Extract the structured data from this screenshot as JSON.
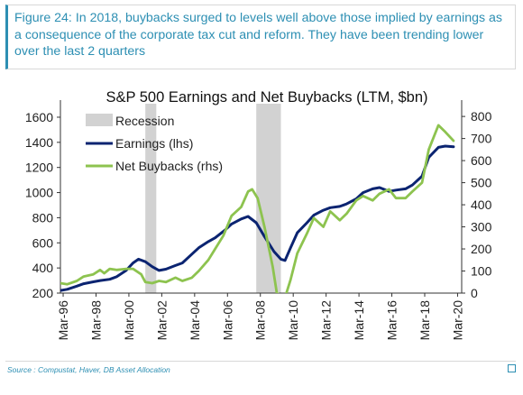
{
  "figure": {
    "caption": "Figure 24: In 2018, buybacks surged to levels well above those implied by earnings as a consequence of the corporate tax cut and reform. They have been trending lower over the last 2 quarters",
    "source": "Source : Compustat, Haver, DB Asset Allocation"
  },
  "colors": {
    "earnings": "#0b2471",
    "buybacks": "#8dc34f",
    "recession": "#d2d2d2",
    "caption": "#2d8fb3"
  },
  "chart_data": {
    "type": "line",
    "title": "S&P 500 Earnings and Net Buybacks (LTM, $bn)",
    "x_axis": {
      "type": "date",
      "range": [
        "1996-01",
        "2020-06"
      ],
      "tick_labels": [
        "Mar-96",
        "Mar-98",
        "Mar-00",
        "Mar-02",
        "Mar-04",
        "Mar-06",
        "Mar-08",
        "Mar-10",
        "Mar-12",
        "Mar-14",
        "Mar-16",
        "Mar-18",
        "Mar-20"
      ]
    },
    "y_left": {
      "range": [
        200,
        1650
      ],
      "ticks": [
        200,
        400,
        600,
        800,
        1000,
        1200,
        1400,
        1600
      ]
    },
    "y_right": {
      "range": [
        0,
        825
      ],
      "ticks": [
        0,
        100,
        200,
        300,
        400,
        500,
        600,
        700,
        800
      ]
    },
    "grid": false,
    "legend": {
      "position": "top-left",
      "entries": [
        {
          "label": "Recession",
          "kind": "band"
        },
        {
          "label": "Earnings (lhs)",
          "kind": "line",
          "series": "earnings"
        },
        {
          "label": "Net Buybacks (rhs)",
          "kind": "line",
          "series": "buybacks"
        }
      ]
    },
    "recessions": [
      {
        "start": "2001-03",
        "end": "2001-11"
      },
      {
        "start": "2007-12",
        "end": "2009-06"
      }
    ],
    "series": [
      {
        "key": "earnings",
        "axis": "left",
        "points": [
          [
            "1996-01",
            220
          ],
          [
            "1996-06",
            230
          ],
          [
            "1997-01",
            255
          ],
          [
            "1997-06",
            275
          ],
          [
            "1998-01",
            290
          ],
          [
            "1998-06",
            300
          ],
          [
            "1999-01",
            310
          ],
          [
            "1999-06",
            330
          ],
          [
            "2000-01",
            380
          ],
          [
            "2000-06",
            440
          ],
          [
            "2000-10",
            470
          ],
          [
            "2001-03",
            450
          ],
          [
            "2001-08",
            410
          ],
          [
            "2002-01",
            380
          ],
          [
            "2002-06",
            390
          ],
          [
            "2003-01",
            420
          ],
          [
            "2003-06",
            440
          ],
          [
            "2004-01",
            510
          ],
          [
            "2004-06",
            560
          ],
          [
            "2005-01",
            610
          ],
          [
            "2005-06",
            640
          ],
          [
            "2006-01",
            700
          ],
          [
            "2006-06",
            750
          ],
          [
            "2007-01",
            790
          ],
          [
            "2007-06",
            810
          ],
          [
            "2007-12",
            760
          ],
          [
            "2008-06",
            650
          ],
          [
            "2009-01",
            530
          ],
          [
            "2009-06",
            470
          ],
          [
            "2009-09",
            460
          ],
          [
            "2010-01",
            560
          ],
          [
            "2010-06",
            680
          ],
          [
            "2011-01",
            760
          ],
          [
            "2011-06",
            820
          ],
          [
            "2012-01",
            860
          ],
          [
            "2012-06",
            880
          ],
          [
            "2013-01",
            890
          ],
          [
            "2013-06",
            910
          ],
          [
            "2014-01",
            950
          ],
          [
            "2014-06",
            1000
          ],
          [
            "2015-01",
            1030
          ],
          [
            "2015-06",
            1040
          ],
          [
            "2016-01",
            1010
          ],
          [
            "2016-06",
            1020
          ],
          [
            "2017-01",
            1030
          ],
          [
            "2017-06",
            1060
          ],
          [
            "2018-01",
            1130
          ],
          [
            "2018-06",
            1280
          ],
          [
            "2019-01",
            1360
          ],
          [
            "2019-06",
            1370
          ],
          [
            "2019-12",
            1365
          ]
        ]
      },
      {
        "key": "buybacks",
        "axis": "right",
        "points": [
          [
            "1996-01",
            45
          ],
          [
            "1996-06",
            40
          ],
          [
            "1997-01",
            55
          ],
          [
            "1997-06",
            75
          ],
          [
            "1998-01",
            85
          ],
          [
            "1998-06",
            105
          ],
          [
            "1998-09",
            90
          ],
          [
            "1999-01",
            110
          ],
          [
            "1999-06",
            105
          ],
          [
            "2000-01",
            110
          ],
          [
            "2000-06",
            110
          ],
          [
            "2000-12",
            85
          ],
          [
            "2001-03",
            50
          ],
          [
            "2001-08",
            45
          ],
          [
            "2002-01",
            55
          ],
          [
            "2002-06",
            50
          ],
          [
            "2003-01",
            70
          ],
          [
            "2003-06",
            55
          ],
          [
            "2004-01",
            70
          ],
          [
            "2004-06",
            100
          ],
          [
            "2005-01",
            150
          ],
          [
            "2005-06",
            200
          ],
          [
            "2005-12",
            260
          ],
          [
            "2006-06",
            350
          ],
          [
            "2007-01",
            390
          ],
          [
            "2007-06",
            460
          ],
          [
            "2007-09",
            470
          ],
          [
            "2008-01",
            430
          ],
          [
            "2008-06",
            300
          ],
          [
            "2008-12",
            120
          ],
          [
            "2009-03",
            0
          ],
          [
            "2009-09",
            -20
          ],
          [
            "2010-01",
            60
          ],
          [
            "2010-06",
            180
          ],
          [
            "2011-01",
            270
          ],
          [
            "2011-06",
            340
          ],
          [
            "2012-01",
            300
          ],
          [
            "2012-06",
            370
          ],
          [
            "2013-01",
            330
          ],
          [
            "2013-06",
            360
          ],
          [
            "2014-01",
            420
          ],
          [
            "2014-06",
            440
          ],
          [
            "2015-01",
            420
          ],
          [
            "2015-06",
            450
          ],
          [
            "2016-01",
            470
          ],
          [
            "2016-06",
            430
          ],
          [
            "2017-01",
            430
          ],
          [
            "2017-06",
            460
          ],
          [
            "2018-01",
            500
          ],
          [
            "2018-06",
            650
          ],
          [
            "2019-01",
            760
          ],
          [
            "2019-06",
            730
          ],
          [
            "2019-12",
            690
          ]
        ]
      }
    ]
  }
}
